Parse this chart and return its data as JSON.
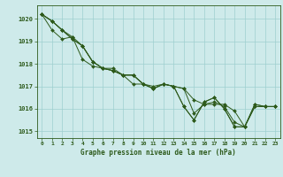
{
  "title": "Graphe pression niveau de la mer (hPa)",
  "bg_color": "#ceeaea",
  "line_color": "#2d5a1b",
  "grid_color": "#9ecfcf",
  "ylim": [
    1014.7,
    1020.6
  ],
  "xlim": [
    -0.5,
    23.5
  ],
  "yticks": [
    1015,
    1016,
    1017,
    1018,
    1019,
    1020
  ],
  "xticks": [
    0,
    1,
    2,
    3,
    4,
    5,
    6,
    7,
    8,
    9,
    10,
    11,
    12,
    13,
    14,
    15,
    16,
    17,
    18,
    19,
    20,
    21,
    22,
    23
  ],
  "series": [
    [
      1020.2,
      1019.9,
      1019.5,
      1019.1,
      1018.8,
      1018.1,
      1017.8,
      1017.8,
      1017.5,
      1017.5,
      1017.1,
      1016.9,
      1017.1,
      1017.0,
      1016.9,
      1016.4,
      1016.2,
      1016.2,
      1016.2,
      1015.9,
      1015.2,
      1016.1,
      1016.1,
      1016.1
    ],
    [
      1020.2,
      1019.9,
      1019.5,
      1019.1,
      1018.8,
      1018.1,
      1017.8,
      1017.7,
      1017.5,
      1017.5,
      1017.1,
      1016.9,
      1017.1,
      1017.0,
      1016.9,
      1015.8,
      1016.2,
      1016.3,
      1016.1,
      1015.4,
      1015.2,
      1016.1,
      1016.1,
      1016.1
    ],
    [
      1020.2,
      1019.9,
      1019.5,
      1019.2,
      1018.8,
      1018.1,
      1017.8,
      1017.7,
      1017.5,
      1017.5,
      1017.1,
      1016.9,
      1017.1,
      1017.0,
      1016.1,
      1015.5,
      1016.3,
      1016.5,
      1016.0,
      1015.2,
      1015.2,
      1016.2,
      1016.1,
      1016.1
    ],
    [
      1020.2,
      1019.5,
      1019.1,
      1019.2,
      1018.2,
      1017.9,
      1017.8,
      1017.7,
      1017.5,
      1017.1,
      1017.1,
      1017.0,
      1017.1,
      1017.0,
      1016.1,
      1015.5,
      1016.3,
      1016.5,
      1016.0,
      1015.2,
      1015.2,
      1016.2,
      1016.1,
      1016.1
    ]
  ]
}
